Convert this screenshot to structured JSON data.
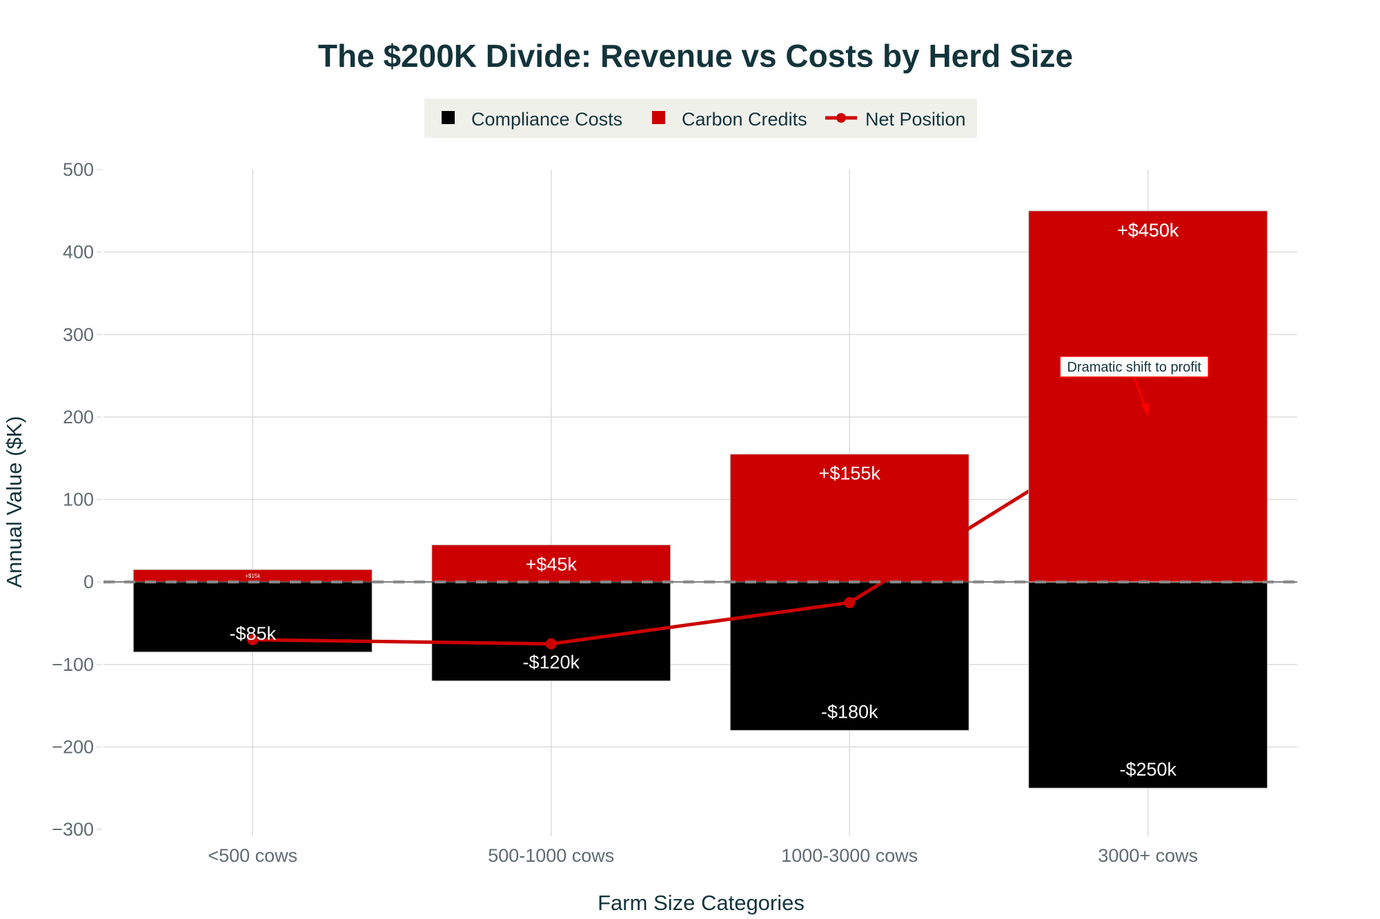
{
  "chart_data": {
    "type": "bar",
    "title": "The $200K Divide: Revenue vs Costs by Herd Size",
    "xlabel": "Farm Size Categories",
    "ylabel": "Annual Value ($K)",
    "ylim": [
      -300,
      500
    ],
    "yticks": [
      500,
      400,
      300,
      200,
      100,
      0,
      -100,
      -200,
      -300
    ],
    "ytick_labels": [
      "500",
      "400",
      "300",
      "200",
      "100",
      "0",
      "−100",
      "−200",
      "−300"
    ],
    "grid": true,
    "barmode": "relative",
    "categories": [
      "<500 cows",
      "500-1000 cows",
      "1000-3000 cows",
      "3000+ cows"
    ],
    "series": [
      {
        "name": "Compliance Costs",
        "type": "bar",
        "color": "#000000",
        "values": [
          -85,
          -120,
          -180,
          -250
        ],
        "labels": [
          "-$85k",
          "-$120k",
          "-$180k",
          "-$250k"
        ]
      },
      {
        "name": "Carbon Credits",
        "type": "bar",
        "color": "#cc0000",
        "values": [
          15,
          45,
          155,
          450
        ],
        "labels": [
          "+$15k",
          "+$45k",
          "+$155k",
          "+$450k"
        ]
      },
      {
        "name": "Net Position",
        "type": "line",
        "color": "#cc0000",
        "values": [
          -70,
          -75,
          -25,
          200
        ]
      }
    ],
    "reference_line": {
      "y": 0,
      "style": "dashed",
      "color": "#888888"
    },
    "annotation": {
      "text": "Dramatic shift to profit",
      "category": "3000+ cows",
      "y": 200,
      "arrow_color": "#ff0000"
    },
    "legend": {
      "placement": "top-center",
      "orientation": "horizontal",
      "background": "#f0f0eb",
      "entries": [
        "Compliance Costs",
        "Carbon Credits",
        "Net Position"
      ]
    }
  }
}
